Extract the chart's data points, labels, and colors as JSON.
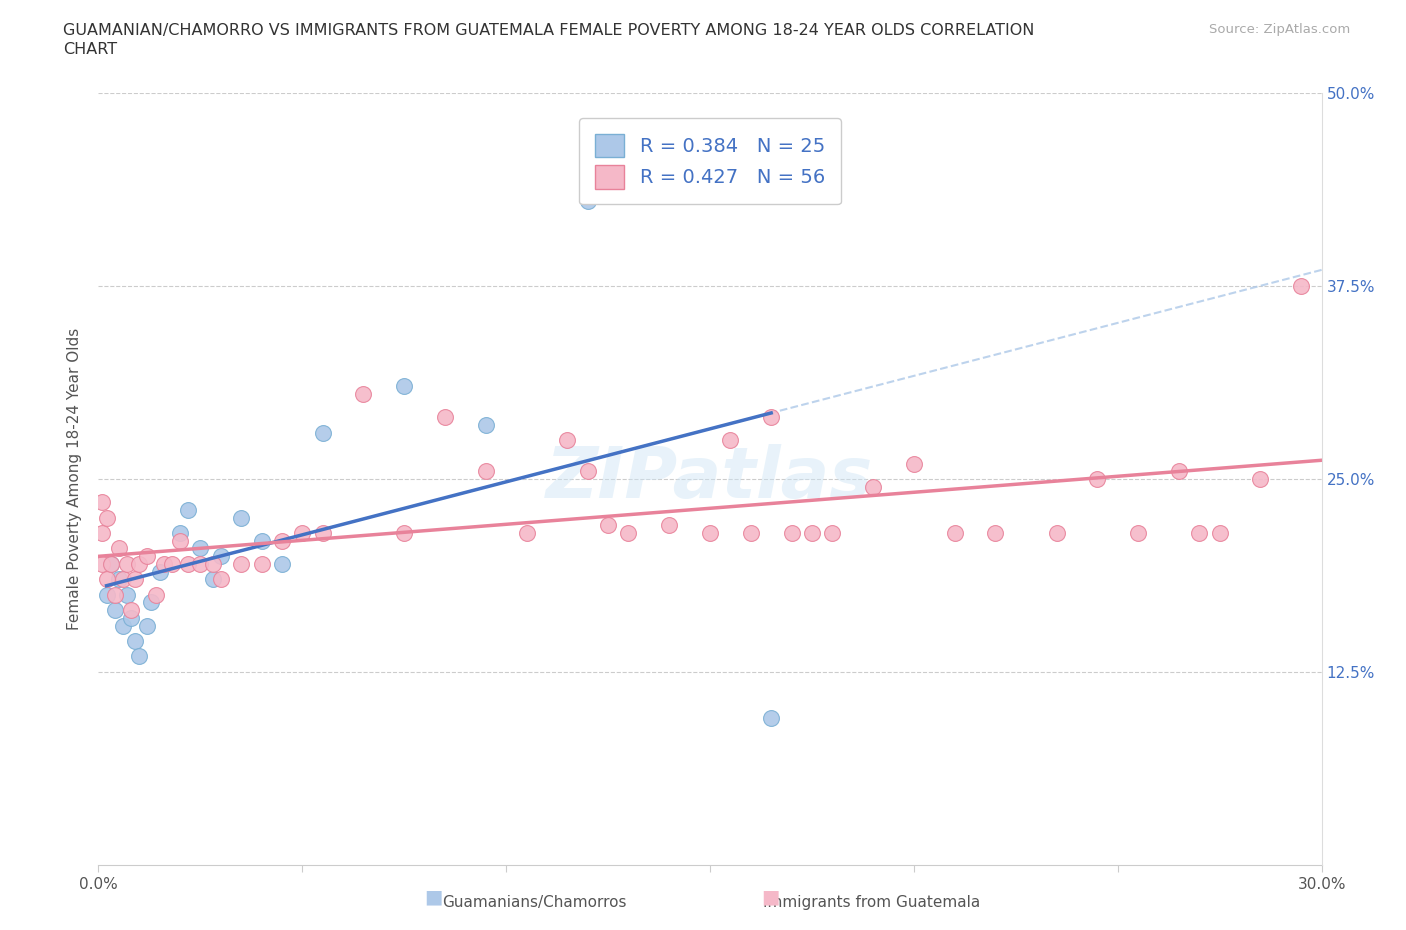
{
  "title_line1": "GUAMANIAN/CHAMORRO VS IMMIGRANTS FROM GUATEMALA FEMALE POVERTY AMONG 18-24 YEAR OLDS CORRELATION",
  "title_line2": "CHART",
  "source": "Source: ZipAtlas.com",
  "ylabel": "Female Poverty Among 18-24 Year Olds",
  "x_min": 0.0,
  "x_max": 0.3,
  "y_min": 0.0,
  "y_max": 0.5,
  "R_blue": 0.384,
  "N_blue": 25,
  "R_pink": 0.427,
  "N_pink": 56,
  "legend_label_blue": "Guamanians/Chamorros",
  "legend_label_pink": "Immigrants from Guatemala",
  "watermark": "ZIPatlas",
  "blue_fill": "#adc8e8",
  "blue_edge": "#7aafd4",
  "pink_fill": "#f5b8c8",
  "pink_edge": "#e8829a",
  "blue_line_color": "#4472c4",
  "pink_line_color": "#e8829a",
  "dashed_color": "#adc8e8",
  "guam_x": [
    0.002,
    0.003,
    0.004,
    0.005,
    0.006,
    0.007,
    0.008,
    0.009,
    0.01,
    0.012,
    0.013,
    0.015,
    0.02,
    0.022,
    0.025,
    0.028,
    0.03,
    0.035,
    0.04,
    0.045,
    0.055,
    0.075,
    0.095,
    0.12,
    0.165
  ],
  "guam_y": [
    0.175,
    0.195,
    0.165,
    0.185,
    0.155,
    0.175,
    0.16,
    0.145,
    0.135,
    0.155,
    0.17,
    0.19,
    0.215,
    0.23,
    0.205,
    0.185,
    0.2,
    0.225,
    0.21,
    0.195,
    0.28,
    0.31,
    0.285,
    0.43,
    0.095
  ],
  "guat_x": [
    0.001,
    0.001,
    0.001,
    0.002,
    0.002,
    0.003,
    0.004,
    0.005,
    0.006,
    0.007,
    0.008,
    0.009,
    0.01,
    0.012,
    0.014,
    0.016,
    0.018,
    0.02,
    0.022,
    0.025,
    0.028,
    0.03,
    0.035,
    0.04,
    0.045,
    0.05,
    0.055,
    0.065,
    0.075,
    0.085,
    0.095,
    0.105,
    0.115,
    0.12,
    0.125,
    0.13,
    0.14,
    0.15,
    0.155,
    0.16,
    0.165,
    0.17,
    0.175,
    0.18,
    0.19,
    0.2,
    0.21,
    0.22,
    0.235,
    0.245,
    0.255,
    0.265,
    0.27,
    0.275,
    0.285,
    0.295
  ],
  "guat_y": [
    0.195,
    0.215,
    0.235,
    0.185,
    0.225,
    0.195,
    0.175,
    0.205,
    0.185,
    0.195,
    0.165,
    0.185,
    0.195,
    0.2,
    0.175,
    0.195,
    0.195,
    0.21,
    0.195,
    0.195,
    0.195,
    0.185,
    0.195,
    0.195,
    0.21,
    0.215,
    0.215,
    0.305,
    0.215,
    0.29,
    0.255,
    0.215,
    0.275,
    0.255,
    0.22,
    0.215,
    0.22,
    0.215,
    0.275,
    0.215,
    0.29,
    0.215,
    0.215,
    0.215,
    0.245,
    0.26,
    0.215,
    0.215,
    0.215,
    0.25,
    0.215,
    0.255,
    0.215,
    0.215,
    0.25,
    0.375
  ],
  "guat_sizes": [
    180,
    160,
    140,
    120,
    130,
    110,
    110,
    110,
    110,
    110,
    110,
    110,
    110,
    110,
    110,
    110,
    110,
    110,
    110,
    110,
    110,
    110,
    110,
    110,
    110,
    110,
    110,
    110,
    110,
    110,
    110,
    110,
    110,
    110,
    110,
    110,
    110,
    110,
    110,
    110,
    110,
    110,
    110,
    110,
    110,
    110,
    110,
    110,
    110,
    110,
    110,
    110,
    110,
    110,
    110,
    110
  ]
}
